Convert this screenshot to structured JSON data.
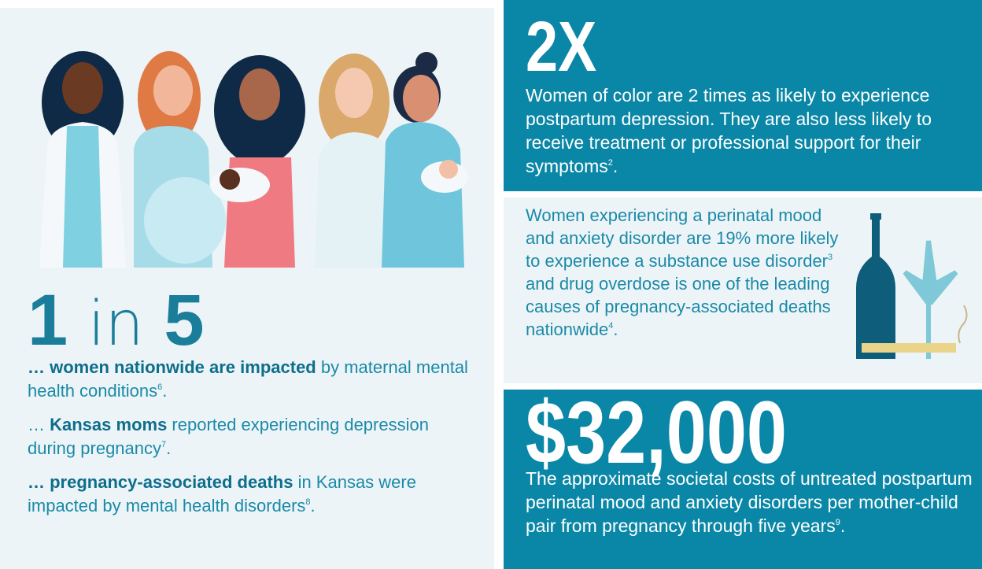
{
  "left": {
    "stat": {
      "first": "1",
      "middle": "in",
      "last": "5"
    },
    "items": [
      {
        "bold": "… women nationwide are impacted",
        "text": " by maternal mental health conditions",
        "sup": "6",
        "end": "."
      },
      {
        "lead": "… ",
        "bold": "Kansas moms",
        "text": " reported experiencing depression during pregnancy",
        "sup": "7",
        "end": "."
      },
      {
        "bold": "… pregnancy-associated deaths",
        "text": " in Kansas were impacted by mental health disorders",
        "sup": "8",
        "end": "."
      }
    ]
  },
  "right": {
    "top": {
      "stat": "2X",
      "text": "Women of color are 2 times as likely to experience postpartum depression. They are also less likely to receive treatment or professional support for their symptoms",
      "sup": "2",
      "end": "."
    },
    "middle": {
      "text": "Women experiencing a perinatal mood and anxiety disorder are 19% more likely to experience a substance use disorder",
      "sup": "3",
      "text2": " and drug overdose is one of the leading causes of pregnancy-associated deaths nationwide",
      "sup2": "4",
      "end": "."
    },
    "bottom": {
      "stat": "$32,000",
      "text": "The approximate societal costs of untreated postpartum perinatal mood and anxiety disorders per mother-child pair from pregnancy through five years",
      "sup": "9",
      "end": "."
    }
  }
}
